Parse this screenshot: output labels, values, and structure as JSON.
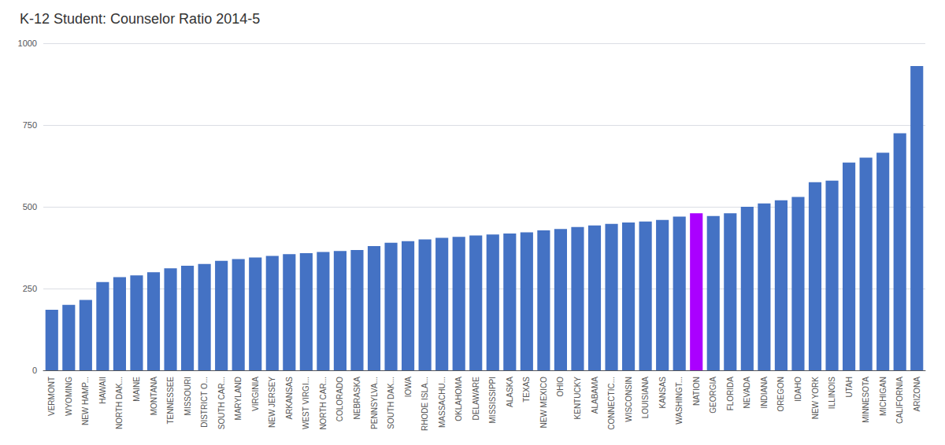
{
  "chart_data": {
    "type": "bar",
    "title": "K-12 Student: Counselor Ratio 2014-5",
    "categories": [
      "VERMONT",
      "WYOMING",
      "NEW HAMP...",
      "HAWAII",
      "NORTH DAK...",
      "MAINE",
      "MONTANA",
      "TENNESSEE",
      "MISSOURI",
      "DISTRICT O...",
      "SOUTH CAR...",
      "MARYLAND",
      "VIRGINIA",
      "NEW JERSEY",
      "ARKANSAS",
      "WEST VIRGI...",
      "NORTH CAR...",
      "COLORADO",
      "NEBRASKA",
      "PENNSYLVA...",
      "SOUTH DAK...",
      "IOWA",
      "RHODE ISLA...",
      "MASSACHU...",
      "OKLAHOMA",
      "DELAWARE",
      "MISSISSIPPI",
      "ALASKA",
      "TEXAS",
      "NEW MEXICO",
      "OHIO",
      "KENTUCKY",
      "ALABAMA",
      "CONNECTIC...",
      "WISCONSIN",
      "LOUISIANA",
      "KANSAS",
      "WASHINGT...",
      "NATION",
      "GEORGIA",
      "FLORIDA",
      "NEVADA",
      "INDIANA",
      "OREGON",
      "IDAHO",
      "NEW YORK",
      "ILLINOIS",
      "UTAH",
      "MINNESOTA",
      "MICHIGAN",
      "CALIFORNIA",
      "ARIZONA"
    ],
    "values": [
      185,
      200,
      215,
      270,
      285,
      290,
      300,
      312,
      320,
      325,
      335,
      340,
      345,
      350,
      355,
      358,
      362,
      365,
      368,
      380,
      390,
      395,
      400,
      405,
      408,
      412,
      415,
      418,
      422,
      428,
      432,
      438,
      443,
      448,
      452,
      455,
      460,
      470,
      480,
      472,
      480,
      500,
      510,
      520,
      530,
      575,
      580,
      635,
      650,
      665,
      725,
      930
    ],
    "colors": [
      "#4472C4",
      "#4472C4",
      "#4472C4",
      "#4472C4",
      "#4472C4",
      "#4472C4",
      "#4472C4",
      "#4472C4",
      "#4472C4",
      "#4472C4",
      "#4472C4",
      "#4472C4",
      "#4472C4",
      "#4472C4",
      "#4472C4",
      "#4472C4",
      "#4472C4",
      "#4472C4",
      "#4472C4",
      "#4472C4",
      "#4472C4",
      "#4472C4",
      "#4472C4",
      "#4472C4",
      "#4472C4",
      "#4472C4",
      "#4472C4",
      "#4472C4",
      "#4472C4",
      "#4472C4",
      "#4472C4",
      "#4472C4",
      "#4472C4",
      "#4472C4",
      "#4472C4",
      "#4472C4",
      "#4472C4",
      "#4472C4",
      "#AA00FF",
      "#4472C4",
      "#4472C4",
      "#4472C4",
      "#4472C4",
      "#4472C4",
      "#4472C4",
      "#4472C4",
      "#4472C4",
      "#4472C4",
      "#4472C4",
      "#4472C4",
      "#4472C4",
      "#4472C4"
    ],
    "ylim": [
      0,
      1000
    ],
    "yticks": [
      0,
      250,
      500,
      750,
      1000
    ],
    "grid": true
  }
}
